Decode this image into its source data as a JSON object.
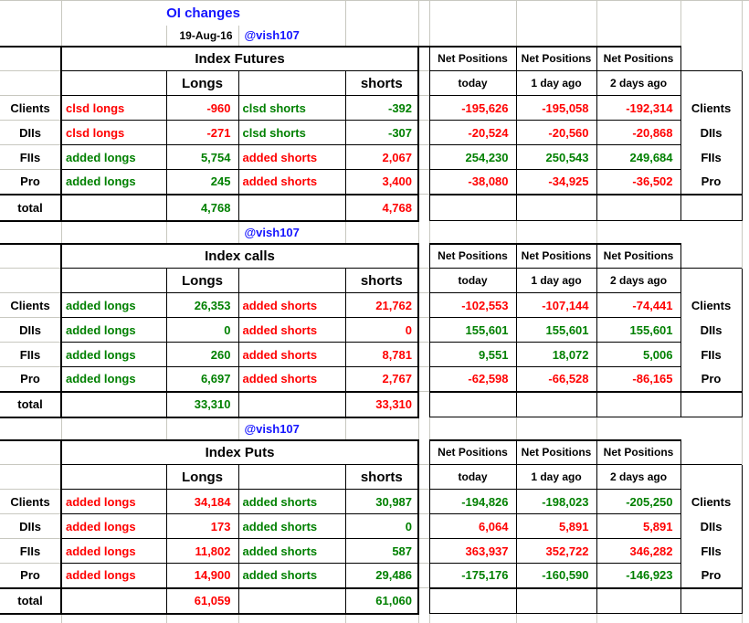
{
  "app": {
    "title": "OI changes",
    "date": "19-Aug-16",
    "handle": "@vish107"
  },
  "colors": {
    "red": "#ff0000",
    "green": "#008000",
    "blue": "#1515ff",
    "grid": "#c8c8c0"
  },
  "labels": {
    "net_positions": "Net Positions",
    "net_periods": [
      "today",
      "1 day ago",
      "2 days ago"
    ],
    "longs": "Longs",
    "shorts": "shorts",
    "total": "total"
  },
  "sections": [
    {
      "title": "Index Futures",
      "rows": [
        {
          "participant": "Clients",
          "long_action": "clsd longs",
          "long_value": "-960",
          "long_color": "red",
          "short_action": "clsd shorts",
          "short_value": "-392",
          "short_color": "green",
          "net_values": [
            "-195,626",
            "-195,058",
            "-192,314"
          ],
          "net_color": "red"
        },
        {
          "participant": "DIIs",
          "long_action": "clsd longs",
          "long_value": "-271",
          "long_color": "red",
          "short_action": "clsd shorts",
          "short_value": "-307",
          "short_color": "green",
          "net_values": [
            "-20,524",
            "-20,560",
            "-20,868"
          ],
          "net_color": "red"
        },
        {
          "participant": "FIIs",
          "long_action": "added longs",
          "long_value": "5,754",
          "long_color": "green",
          "short_action": "added shorts",
          "short_value": "2,067",
          "short_color": "red",
          "net_values": [
            "254,230",
            "250,543",
            "249,684"
          ],
          "net_color": "green"
        },
        {
          "participant": "Pro",
          "long_action": "added longs",
          "long_value": "245",
          "long_color": "green",
          "short_action": "added shorts",
          "short_value": "3,400",
          "short_color": "red",
          "net_values": [
            "-38,080",
            "-34,925",
            "-36,502"
          ],
          "net_color": "red"
        }
      ],
      "total": {
        "long_value": "4,768",
        "long_color": "green",
        "short_value": "4,768",
        "short_color": "red"
      }
    },
    {
      "title": "Index calls",
      "rows": [
        {
          "participant": "Clients",
          "long_action": "added longs",
          "long_value": "26,353",
          "long_color": "green",
          "short_action": "added shorts",
          "short_value": "21,762",
          "short_color": "red",
          "net_values": [
            "-102,553",
            "-107,144",
            "-74,441"
          ],
          "net_color": "red"
        },
        {
          "participant": "DIIs",
          "long_action": "added longs",
          "long_value": "0",
          "long_color": "green",
          "short_action": "added shorts",
          "short_value": "0",
          "short_color": "red",
          "net_values": [
            "155,601",
            "155,601",
            "155,601"
          ],
          "net_color": "green"
        },
        {
          "participant": "FIIs",
          "long_action": "added longs",
          "long_value": "260",
          "long_color": "green",
          "short_action": "added shorts",
          "short_value": "8,781",
          "short_color": "red",
          "net_values": [
            "9,551",
            "18,072",
            "5,006"
          ],
          "net_color": "green"
        },
        {
          "participant": "Pro",
          "long_action": "added longs",
          "long_value": "6,697",
          "long_color": "green",
          "short_action": "added shorts",
          "short_value": "2,767",
          "short_color": "red",
          "net_values": [
            "-62,598",
            "-66,528",
            "-86,165"
          ],
          "net_color": "red"
        }
      ],
      "total": {
        "long_value": "33,310",
        "long_color": "green",
        "short_value": "33,310",
        "short_color": "red"
      }
    },
    {
      "title": "Index Puts",
      "rows": [
        {
          "participant": "Clients",
          "long_action": "added longs",
          "long_value": "34,184",
          "long_color": "red",
          "short_action": "added shorts",
          "short_value": "30,987",
          "short_color": "green",
          "net_values": [
            "-194,826",
            "-198,023",
            "-205,250"
          ],
          "net_color": "green"
        },
        {
          "participant": "DIIs",
          "long_action": "added longs",
          "long_value": "173",
          "long_color": "red",
          "short_action": "added shorts",
          "short_value": "0",
          "short_color": "green",
          "net_values": [
            "6,064",
            "5,891",
            "5,891"
          ],
          "net_color": "red"
        },
        {
          "participant": "FIIs",
          "long_action": "added longs",
          "long_value": "11,802",
          "long_color": "red",
          "short_action": "added shorts",
          "short_value": "587",
          "short_color": "green",
          "net_values": [
            "363,937",
            "352,722",
            "346,282"
          ],
          "net_color": "red"
        },
        {
          "participant": "Pro",
          "long_action": "added longs",
          "long_value": "14,900",
          "long_color": "red",
          "short_action": "added shorts",
          "short_value": "29,486",
          "short_color": "green",
          "net_values": [
            "-175,176",
            "-160,590",
            "-146,923"
          ],
          "net_color": "green"
        }
      ],
      "total": {
        "long_value": "61,059",
        "long_color": "red",
        "short_value": "61,060",
        "short_color": "green"
      }
    }
  ]
}
